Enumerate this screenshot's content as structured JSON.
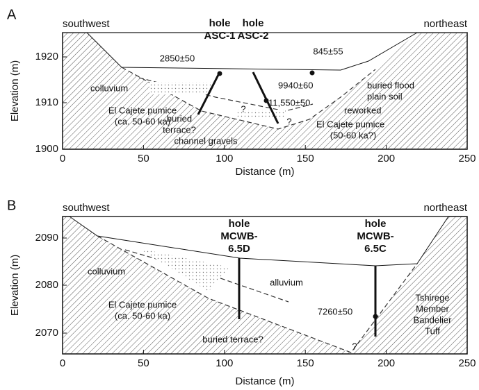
{
  "panels": [
    {
      "letter": "A",
      "left_label": "southwest",
      "right_label": "northeast",
      "y_axis_label": "Elevation (m)",
      "x_axis_label": "Distance (m)",
      "yticks": [
        1900,
        1910,
        1920
      ],
      "xticks": [
        0,
        50,
        100,
        150,
        200,
        250
      ],
      "holes": [
        {
          "line1": "hole",
          "line2": "ASC-1"
        },
        {
          "line1": "hole",
          "line2": "ASC-2"
        }
      ],
      "annotations": [
        "2850±50",
        "845±55",
        "colluvium",
        "9940±60",
        "buried flood",
        "plain soil",
        "El Cajete pumice",
        "(ca. 50-60 ka)",
        "11,550±50",
        "reworked",
        "buried",
        "terrace?",
        "El Cajete pumice",
        "(50-60 ka?)",
        "channel gravels",
        "?",
        "?"
      ]
    },
    {
      "letter": "B",
      "left_label": "southwest",
      "right_label": "northeast",
      "y_axis_label": "Elevation (m)",
      "x_axis_label": "Distance (m)",
      "yticks": [
        2070,
        2080,
        2090
      ],
      "xticks": [
        0,
        50,
        100,
        150,
        200,
        250
      ],
      "holes": [
        {
          "line1": "hole",
          "line2": "MCWB-",
          "line3": "6.5D"
        },
        {
          "line1": "hole",
          "line2": "MCWB-",
          "line3": "6.5C"
        }
      ],
      "annotations": [
        "colluvium",
        "alluvium",
        "El Cajete pumice",
        "(ca. 50-60 ka)",
        "7260±50",
        "Tshirege",
        "Member",
        "Bandelier",
        "Tuff",
        "buried terrace?",
        "?"
      ]
    }
  ]
}
